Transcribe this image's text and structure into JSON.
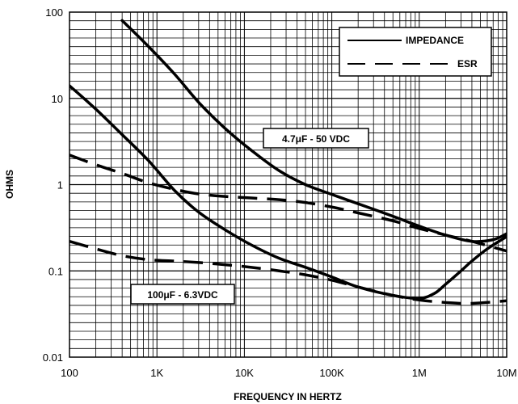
{
  "chart_data": {
    "type": "line",
    "title": "",
    "xlabel": "FREQUENCY IN HERTZ",
    "ylabel": "OHMS",
    "x_scale": "log",
    "y_scale": "log",
    "xlim": [
      100,
      10000000
    ],
    "ylim": [
      0.01,
      100
    ],
    "grid": true,
    "x_ticks": [
      100,
      1000,
      10000,
      100000,
      1000000,
      10000000
    ],
    "x_tick_labels": [
      "100",
      "1K",
      "10K",
      "100K",
      "1M",
      "10M"
    ],
    "y_ticks": [
      0.01,
      0.1,
      1,
      10,
      100
    ],
    "y_tick_labels": [
      "0.01",
      "0.1",
      "1",
      "10",
      "100"
    ],
    "legend": {
      "placement": "top-right",
      "entries": [
        {
          "label": "IMPEDANCE",
          "style": "solid"
        },
        {
          "label": "ESR",
          "style": "dashed"
        }
      ]
    },
    "annotations": [
      "4.7μF - 50 VDC",
      "100μF - 6.3VDC"
    ],
    "series": [
      {
        "group": "4.7μF - 50 VDC",
        "kind": "IMPEDANCE",
        "style": "solid",
        "x": [
          400,
          800,
          1600,
          3000,
          6000,
          12000,
          25000,
          50000,
          100000,
          200000,
          500000,
          1000000,
          2000000,
          4000000,
          7000000,
          10000000
        ],
        "y": [
          80,
          40,
          19,
          9,
          4.5,
          2.5,
          1.45,
          1.0,
          0.77,
          0.6,
          0.43,
          0.33,
          0.26,
          0.22,
          0.23,
          0.27
        ]
      },
      {
        "group": "4.7μF - 50 VDC",
        "kind": "ESR",
        "style": "dashed",
        "x": [
          100,
          200,
          400,
          800,
          1600,
          3000,
          6000,
          12000,
          25000,
          50000,
          100000,
          200000,
          500000,
          1000000,
          2000000,
          4000000,
          10000000
        ],
        "y": [
          2.2,
          1.7,
          1.35,
          1.05,
          0.88,
          0.78,
          0.73,
          0.7,
          0.67,
          0.62,
          0.55,
          0.47,
          0.38,
          0.31,
          0.26,
          0.22,
          0.17
        ]
      },
      {
        "group": "100μF - 6.3VDC",
        "kind": "IMPEDANCE",
        "style": "solid",
        "x": [
          100,
          200,
          400,
          800,
          1600,
          3000,
          6000,
          12000,
          25000,
          50000,
          100000,
          200000,
          500000,
          1000000,
          1500000,
          2000000,
          3000000,
          4000000,
          6000000,
          10000000
        ],
        "y": [
          14,
          7.5,
          3.8,
          1.9,
          0.85,
          0.48,
          0.3,
          0.2,
          0.14,
          0.11,
          0.085,
          0.065,
          0.052,
          0.048,
          0.055,
          0.07,
          0.1,
          0.13,
          0.18,
          0.25
        ]
      },
      {
        "group": "100μF - 6.3VDC",
        "kind": "ESR",
        "style": "dashed",
        "x": [
          100,
          200,
          400,
          800,
          1600,
          3000,
          6000,
          12000,
          25000,
          50000,
          100000,
          200000,
          500000,
          1000000,
          2000000,
          4000000,
          10000000
        ],
        "y": [
          0.22,
          0.18,
          0.15,
          0.135,
          0.13,
          0.125,
          0.118,
          0.11,
          0.1,
          0.09,
          0.078,
          0.065,
          0.052,
          0.046,
          0.043,
          0.042,
          0.045
        ]
      }
    ]
  }
}
